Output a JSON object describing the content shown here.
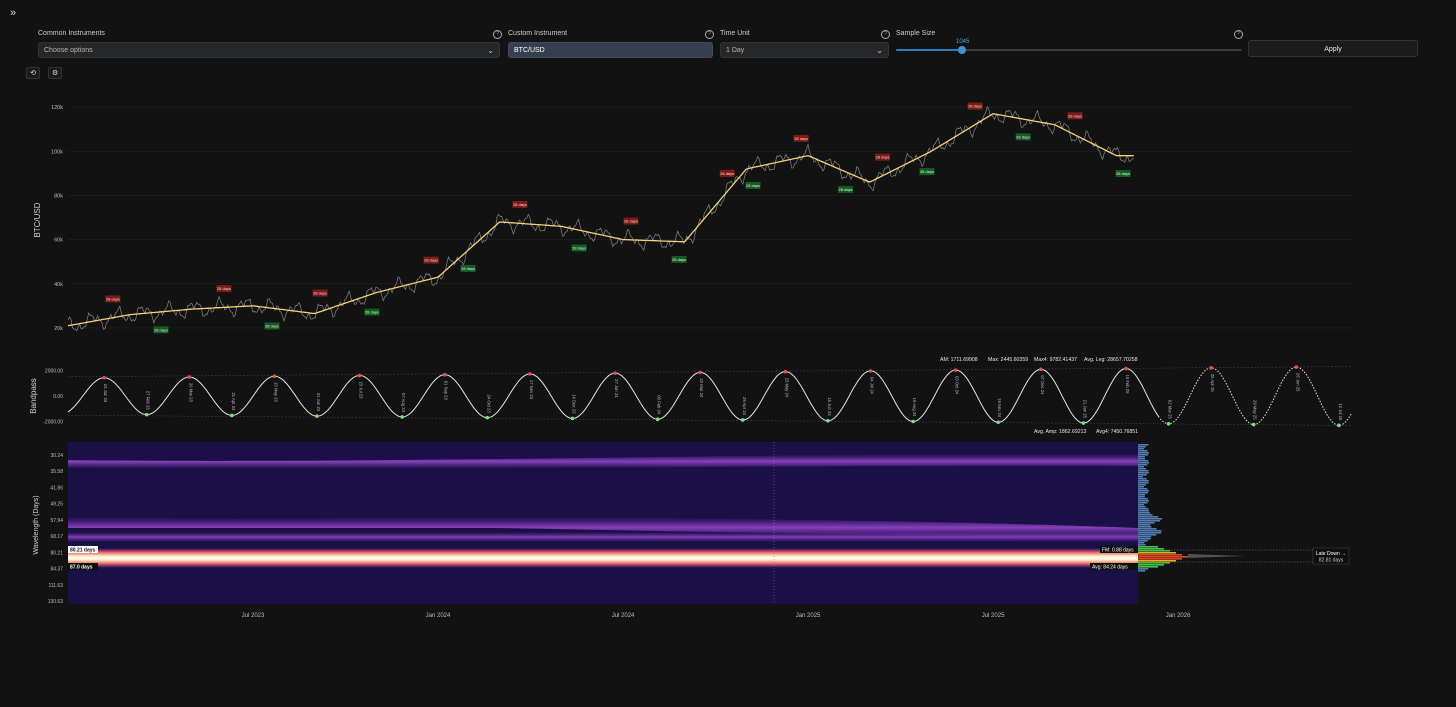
{
  "toolbar": {
    "expand_icon": "»",
    "common_instruments_label": "Common Instruments",
    "common_instruments_placeholder": "Choose options",
    "custom_instrument_label": "Custom Instrument",
    "custom_instrument_value": "BTC/USD",
    "time_unit_label": "Time Unit",
    "time_unit_value": "1 Day",
    "sample_size_label": "Sample Size",
    "sample_size_value": "1045",
    "sample_size_fraction": 0.19,
    "apply_label": "Apply",
    "help_icon": "?"
  },
  "colors": {
    "background": "#121212",
    "price_line": "#9a9a9a",
    "trend_line": "#f2d27a",
    "top_marker": "#e5504a",
    "bottom_marker": "#7de07d",
    "top_box": "#7a1c18",
    "bottom_box": "#155a23",
    "accent": "#2f7fbf",
    "spectrum_base": "#1a0f46"
  },
  "price_panel": {
    "ylabel": "BTC/USD",
    "yticks": [
      "120k",
      "100k",
      "80k",
      "60k",
      "40k",
      "20k"
    ],
    "top_label": "28 days",
    "bottom_label": "28 days"
  },
  "bandpass_panel": {
    "ylabel": "Bandpass",
    "yticks": [
      "2000.00",
      "0.00",
      "-2000.00"
    ],
    "stats": {
      "am": "AM: 1711.69908",
      "max": "Max: 2445.60359",
      "max4": "Max4: 9782.41437",
      "avg_leg": "Avg. Leg: 28657.70258",
      "avg_amp": "Avg. Amp: 1862.69213",
      "avg4": "Avg4: 7450.76851"
    },
    "cycle_dates": [
      "23 Jan 23",
      "27 Feb 23",
      "26 Mar 23",
      "21 Apr 23",
      "15 May 23",
      "21 Jun 23",
      "23 Jul 23",
      "07 Aug 23",
      "01 Sep 23",
      "24 Oct 23",
      "17 Nov 23",
      "14 Dec 23",
      "27 Jan 24",
      "05 Feb 24",
      "22 Mar 24",
      "29 Apr 24",
      "23 May 24",
      "15 Jun 24",
      "04 Jul 24",
      "19 Aug 24",
      "03 Oct 24",
      "19 Nov 24",
      "07 Dec 24",
      "21 Jan 25",
      "15 Feb 25",
      "02 Mar 25",
      "25 Apr 25",
      "29 May 25",
      "26 Jun 25",
      "12 Jul 25",
      "18 Aug 25",
      "09 Sep 25",
      "19 Oct 25",
      "10 Nov 25",
      "05 Dec 25",
      "06 Jan 26"
    ]
  },
  "spectrum_panel": {
    "ylabel": "Wavelength (Days)",
    "yticks": [
      "30.24",
      "35.58",
      "41.86",
      "49.25",
      "57.94",
      "68.17",
      "80.21",
      "84.37",
      "111.63",
      "130.63"
    ],
    "left_tag_1": "80.21 days",
    "left_tag_2": "87.0 days",
    "fm_tag": "FM: 0.88 days",
    "avg_tag": "Avg: 84.24 days",
    "phase_title": "Late Down →",
    "phase_days": "82.81 days"
  },
  "xaxis": {
    "ticks": [
      "Jul 2023",
      "Jan 2024",
      "Jul 2024",
      "Jan 2025",
      "Jul 2025",
      "Jan 2026"
    ]
  },
  "chart_data": [
    {
      "type": "line",
      "ylabel": "BTC/USD",
      "x": [
        "2023-01",
        "2023-03",
        "2023-05",
        "2023-07",
        "2023-09",
        "2023-11",
        "2024-01",
        "2024-03",
        "2024-05",
        "2024-07",
        "2024-09",
        "2024-11",
        "2025-01",
        "2025-03",
        "2025-05",
        "2025-07",
        "2025-09",
        "2025-11"
      ],
      "series": [
        {
          "values": [
            21000,
            26000,
            28500,
            30000,
            26500,
            36000,
            43000,
            68000,
            66000,
            60000,
            59000,
            92000,
            98000,
            86000,
            100000,
            117000,
            112000,
            98000
          ]
        }
      ],
      "ylim": [
        10000,
        130000
      ]
    },
    {
      "type": "line",
      "ylabel": "Bandpass",
      "ylim": [
        -2500,
        2500
      ]
    }
  ]
}
